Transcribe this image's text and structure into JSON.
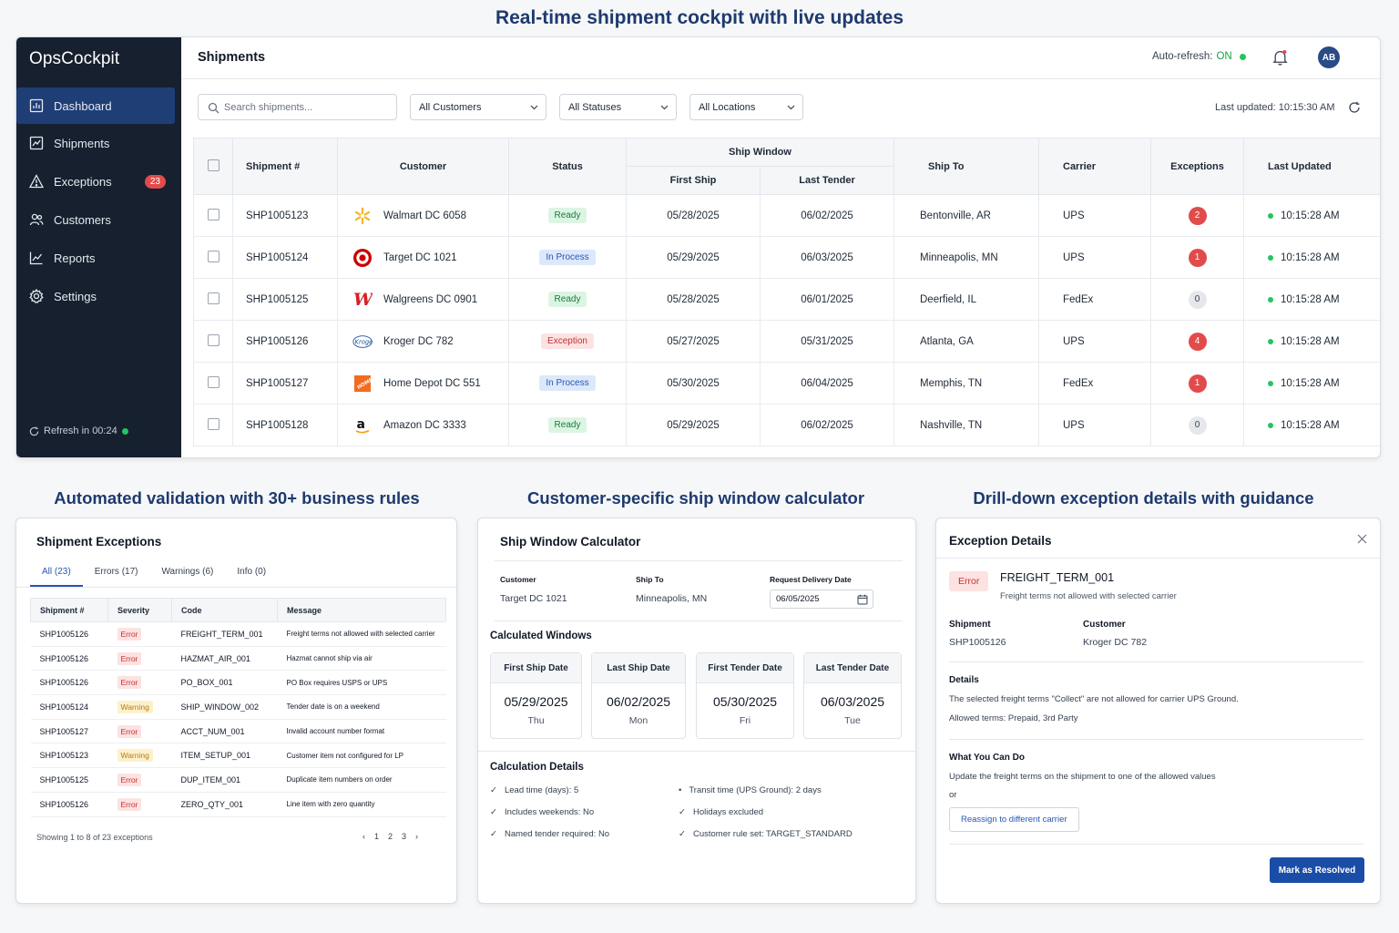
{
  "headings": {
    "main": "Real-time shipment cockpit with live updates",
    "left": "Automated validation with 30+ business rules",
    "middle": "Customer-specific ship window calculator",
    "right": "Drill-down exception details with guidance"
  },
  "sidebar": {
    "brand": "OpsCockpit",
    "items": [
      {
        "label": "Dashboard",
        "icon": "dashboard-icon",
        "active": true
      },
      {
        "label": "Shipments",
        "icon": "shipments-icon"
      },
      {
        "label": "Exceptions",
        "icon": "warning-icon",
        "badge": "23"
      },
      {
        "label": "Customers",
        "icon": "users-icon"
      },
      {
        "label": "Reports",
        "icon": "chart-icon"
      },
      {
        "label": "Settings",
        "icon": "gear-icon"
      }
    ],
    "footer": "Refresh in 00:24"
  },
  "header": {
    "title": "Shipments",
    "autorefresh_label": "Auto-refresh:",
    "autorefresh_value": "ON",
    "avatar": "AB"
  },
  "filters": {
    "search_placeholder": "Search shipments...",
    "customers": "All Customers",
    "statuses": "All Statuses",
    "locations": "All Locations",
    "last_updated": "Last updated: 10:15:30 AM"
  },
  "table": {
    "headers": {
      "shipment": "Shipment #",
      "customer": "Customer",
      "status": "Status",
      "window": "Ship Window",
      "first_ship": "First Ship",
      "last_tender": "Last Tender",
      "ship_to": "Ship To",
      "carrier": "Carrier",
      "exceptions": "Exceptions",
      "last_updated": "Last Updated"
    },
    "rows": [
      {
        "id": "SHP1005123",
        "customer": "Walmart DC 6058",
        "logo": "walmart",
        "status": "Ready",
        "first_ship": "05/28/2025",
        "last_tender": "06/02/2025",
        "ship_to": "Bentonville, AR",
        "carrier": "UPS",
        "exceptions": "2",
        "updated": "10:15:28 AM"
      },
      {
        "id": "SHP1005124",
        "customer": "Target DC 1021",
        "logo": "target",
        "status": "In Process",
        "first_ship": "05/29/2025",
        "last_tender": "06/03/2025",
        "ship_to": "Minneapolis, MN",
        "carrier": "UPS",
        "exceptions": "1",
        "updated": "10:15:28 AM"
      },
      {
        "id": "SHP1005125",
        "customer": "Walgreens DC 0901",
        "logo": "walgreens",
        "status": "Ready",
        "first_ship": "05/28/2025",
        "last_tender": "06/01/2025",
        "ship_to": "Deerfield, IL",
        "carrier": "FedEx",
        "exceptions": "0",
        "updated": "10:15:28 AM"
      },
      {
        "id": "SHP1005126",
        "customer": "Kroger DC 782",
        "logo": "kroger",
        "status": "Exception",
        "first_ship": "05/27/2025",
        "last_tender": "05/31/2025",
        "ship_to": "Atlanta, GA",
        "carrier": "UPS",
        "exceptions": "4",
        "updated": "10:15:28 AM"
      },
      {
        "id": "SHP1005127",
        "customer": "Home Depot DC 551",
        "logo": "homedepot",
        "status": "In Process",
        "first_ship": "05/30/2025",
        "last_tender": "06/04/2025",
        "ship_to": "Memphis, TN",
        "carrier": "FedEx",
        "exceptions": "1",
        "updated": "10:15:28 AM"
      },
      {
        "id": "SHP1005128",
        "customer": "Amazon DC 3333",
        "logo": "amazon",
        "status": "Ready",
        "first_ship": "05/29/2025",
        "last_tender": "06/02/2025",
        "ship_to": "Nashville, TN",
        "carrier": "UPS",
        "exceptions": "0",
        "updated": "10:15:28 AM"
      }
    ]
  },
  "exceptions_panel": {
    "title": "Shipment Exceptions",
    "tabs": [
      "All (23)",
      "Errors (17)",
      "Warnings (6)",
      "Info (0)"
    ],
    "headers": [
      "Shipment #",
      "Severity",
      "Code",
      "Message"
    ],
    "rows": [
      {
        "id": "SHP1005126",
        "severity": "Error",
        "code": "FREIGHT_TERM_001",
        "message": "Freight terms not allowed with selected carrier"
      },
      {
        "id": "SHP1005126",
        "severity": "Error",
        "code": "HAZMAT_AIR_001",
        "message": "Hazmat cannot ship via air"
      },
      {
        "id": "SHP1005126",
        "severity": "Error",
        "code": "PO_BOX_001",
        "message": "PO Box requires USPS or UPS"
      },
      {
        "id": "SHP1005124",
        "severity": "Warning",
        "code": "SHIP_WINDOW_002",
        "message": "Tender date is on a weekend"
      },
      {
        "id": "SHP1005127",
        "severity": "Error",
        "code": "ACCT_NUM_001",
        "message": "Invalid account number format"
      },
      {
        "id": "SHP1005123",
        "severity": "Warning",
        "code": "ITEM_SETUP_001",
        "message": "Customer item not configured for LP"
      },
      {
        "id": "SHP1005125",
        "severity": "Error",
        "code": "DUP_ITEM_001",
        "message": "Duplicate item numbers on order"
      },
      {
        "id": "SHP1005126",
        "severity": "Error",
        "code": "ZERO_QTY_001",
        "message": "Line item with zero quantity"
      }
    ],
    "footer": "Showing 1 to 8 of 23 exceptions",
    "pages": [
      "‹",
      "1",
      "2",
      "3",
      "›"
    ]
  },
  "calculator": {
    "title": "Ship Window Calculator",
    "customer_label": "Customer",
    "customer_value": "Target DC 1021",
    "shipto_label": "Ship To",
    "shipto_value": "Minneapolis, MN",
    "delivery_label": "Request Delivery Date",
    "delivery_value": "06/05/2025",
    "windows_title": "Calculated Windows",
    "windows": [
      {
        "label": "First Ship Date",
        "date": "05/29/2025",
        "day": "Thu"
      },
      {
        "label": "Last Ship Date",
        "date": "06/02/2025",
        "day": "Mon"
      },
      {
        "label": "First Tender Date",
        "date": "05/30/2025",
        "day": "Fri"
      },
      {
        "label": "Last Tender Date",
        "date": "06/03/2025",
        "day": "Tue"
      }
    ],
    "details_title": "Calculation Details",
    "details_left": [
      "Lead time (days): 5",
      "Includes weekends: No",
      "Named tender required: No"
    ],
    "details_right": [
      "Transit time (UPS Ground): 2 days",
      "Holidays excluded",
      "Customer rule set: TARGET_STANDARD"
    ]
  },
  "exception_details": {
    "title": "Exception Details",
    "severity": "Error",
    "code": "FREIGHT_TERM_001",
    "message": "Freight terms not allowed with selected carrier",
    "shipment_label": "Shipment",
    "shipment_value": "SHP1005126",
    "customer_label": "Customer",
    "customer_value": "Kroger DC 782",
    "details_label": "Details",
    "details_text": "The selected freight terms \"Collect\" are not allowed for carrier UPS Ground.",
    "allowed_text": "Allowed terms: Prepaid, 3rd Party",
    "todo_label": "What You Can Do",
    "todo_text": "Update the freight terms on the shipment to one of the allowed values",
    "or_text": "or",
    "reassign_label": "Reassign to different carrier",
    "resolve_label": "Mark as Resolved"
  },
  "colors": {
    "sidebar_bg": "#16202f",
    "active_nav": "#1f3e75",
    "heading": "#1e3a6e",
    "primary": "#1a4da8",
    "error": "#e24b4b",
    "success": "#22c55e"
  }
}
